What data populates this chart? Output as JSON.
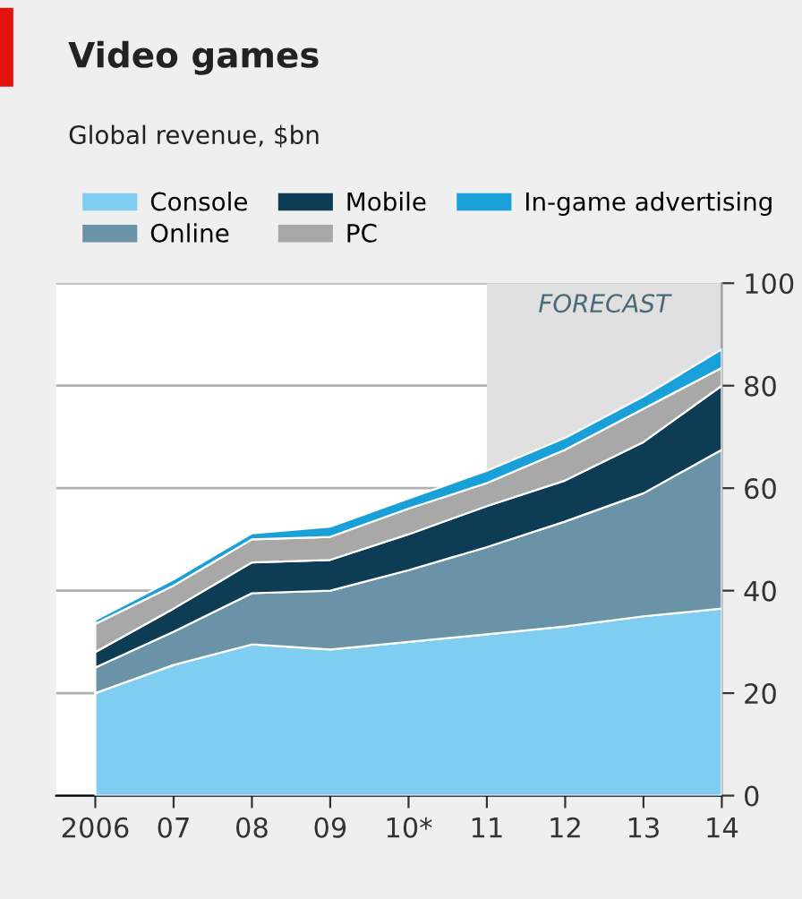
{
  "chart_data": {
    "type": "area",
    "stacked": true,
    "title": "Video games",
    "subtitle": "Global revenue, $bn",
    "categories": [
      "2006",
      "07",
      "08",
      "09",
      "10*",
      "11",
      "12",
      "13",
      "14"
    ],
    "series": [
      {
        "name": "Console",
        "color": "#7fcdf0",
        "values": [
          20,
          25.5,
          29.5,
          28.5,
          30,
          31.5,
          33,
          35,
          36.5
        ]
      },
      {
        "name": "Online",
        "color": "#6a93a8",
        "values": [
          5,
          6.5,
          10,
          11.5,
          14,
          17,
          20.5,
          24,
          31
        ]
      },
      {
        "name": "Mobile",
        "color": "#0d3c54",
        "values": [
          3,
          4.5,
          6,
          6,
          7,
          8,
          8,
          10,
          12.5
        ]
      },
      {
        "name": "PC",
        "color": "#a8a8a8",
        "values": [
          5.5,
          4.5,
          4.5,
          4.5,
          5,
          4.5,
          6,
          6.5,
          3.5
        ]
      },
      {
        "name": "In-game advertising",
        "color": "#1aa0d8",
        "values": [
          0.8,
          1.2,
          1.2,
          2,
          2,
          2.4,
          2.3,
          2.4,
          3.6
        ]
      }
    ],
    "ylim": [
      0,
      100
    ],
    "yticks": [
      0,
      20,
      40,
      60,
      80,
      100
    ],
    "grid": "y",
    "legend": "top",
    "bands": [
      {
        "axis": "x",
        "from": "11",
        "to": "14",
        "label": "FORECAST",
        "color": "#e0e0e0"
      }
    ]
  }
}
